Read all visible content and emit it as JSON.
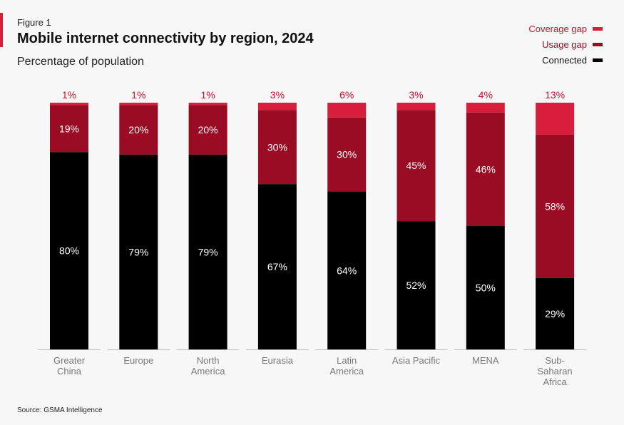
{
  "figure": {
    "label": "Figure 1",
    "title": "Mobile internet connectivity by region, 2024",
    "subtitle": "Percentage of population",
    "source": "Source: GSMA Intelligence"
  },
  "colors": {
    "connected": "#000000",
    "usage_gap": "#990c24",
    "coverage_gap": "#d81e3a",
    "label_on_dark": "#ffffff",
    "top_label": "#c8102e",
    "category_text": "#777777"
  },
  "chart_data": {
    "type": "bar",
    "stacked": true,
    "title": "Mobile internet connectivity by region, 2024",
    "subtitle": "Percentage of population",
    "ylabel": "Percentage of population",
    "ylim": [
      0,
      100
    ],
    "grid": false,
    "legend_position": "top-right",
    "categories": [
      [
        "Greater",
        "China"
      ],
      [
        "Europe"
      ],
      [
        "North",
        "America"
      ],
      [
        "Eurasia"
      ],
      [
        "Latin",
        "America"
      ],
      [
        "Asia Pacific"
      ],
      [
        "MENA"
      ],
      [
        "Sub-",
        "Saharan",
        "Africa"
      ]
    ],
    "series": [
      {
        "name": "Connected",
        "key": "connected",
        "values": [
          80,
          79,
          79,
          67,
          64,
          52,
          50,
          29
        ]
      },
      {
        "name": "Usage gap",
        "key": "usage_gap",
        "values": [
          19,
          20,
          20,
          30,
          30,
          45,
          46,
          58
        ]
      },
      {
        "name": "Coverage gap",
        "key": "coverage_gap",
        "values": [
          1,
          1,
          1,
          3,
          6,
          3,
          4,
          13
        ]
      }
    ],
    "legend": [
      "Coverage gap",
      "Usage gap",
      "Connected"
    ]
  }
}
